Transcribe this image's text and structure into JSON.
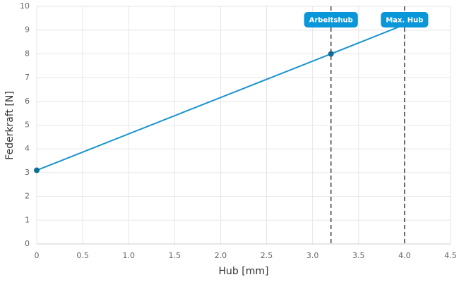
{
  "chart_data": {
    "type": "line",
    "xlabel": "Hub [mm]",
    "ylabel": "Federkraft [N]",
    "series": [
      {
        "name": "Federkraft",
        "color": "#1a93d0",
        "marker_color": "#0d6e96",
        "x": [
          0,
          3.2,
          4.0
        ],
        "values": [
          3.1,
          8.0,
          9.23
        ],
        "markers": [
          true,
          true,
          false
        ]
      }
    ],
    "annotations": [
      {
        "x": 3.2,
        "label": "Arbeitshub"
      },
      {
        "x": 4.0,
        "label": "Max. Hub"
      }
    ],
    "annotation_color": "#0a97d9",
    "xlim": [
      0,
      4.5
    ],
    "xticks": [
      0,
      0.5,
      {
        "value": 1,
        "label": "1.0"
      },
      1.5,
      {
        "value": 2,
        "label": "2.0"
      },
      2.5,
      {
        "value": 3,
        "label": "3.0"
      },
      3.5,
      {
        "value": 4,
        "label": "4.0"
      },
      4.5
    ],
    "ylim": [
      0,
      10
    ],
    "yticks": [
      0,
      1,
      2,
      3,
      4,
      5,
      6,
      7,
      8,
      9,
      10
    ],
    "grid": true
  }
}
